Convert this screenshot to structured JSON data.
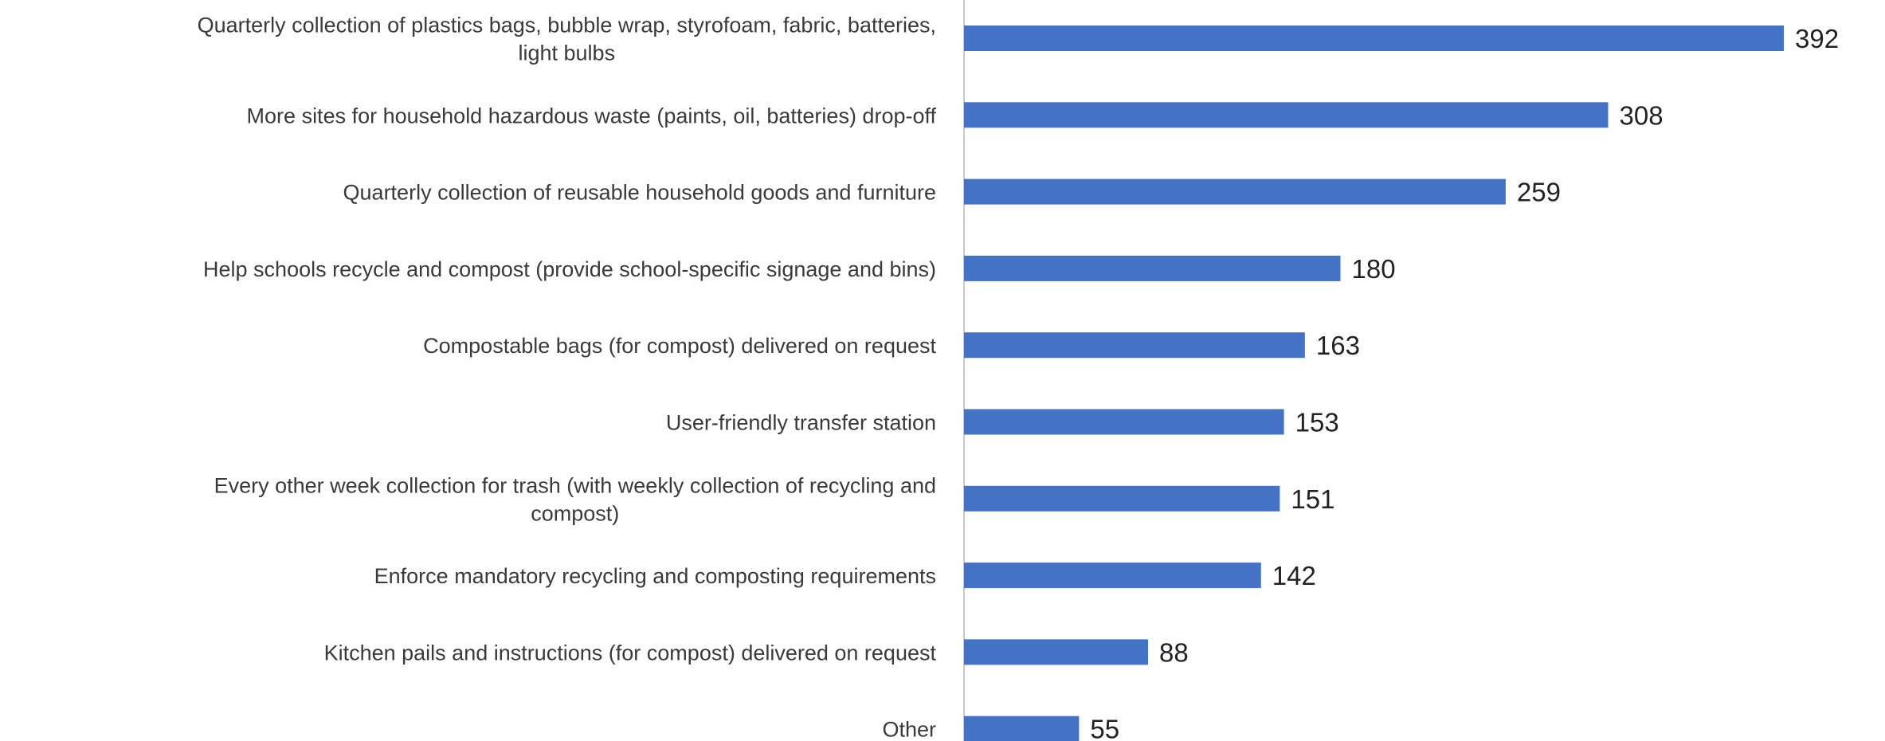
{
  "chart_data": {
    "type": "bar",
    "orientation": "horizontal",
    "title": "",
    "xlabel": "",
    "ylabel": "",
    "categories": [
      [
        "Quarterly collection of plastics bags, bubble wrap, styrofoam, fabric, batteries,",
        "light bulbs"
      ],
      [
        "More sites for household hazardous waste (paints, oil, batteries) drop-off"
      ],
      [
        "Quarterly collection of reusable household goods and furniture"
      ],
      [
        "Help schools recycle and compost (provide school-specific signage and bins)"
      ],
      [
        "Compostable bags (for compost) delivered on request"
      ],
      [
        "User-friendly transfer station"
      ],
      [
        "Every other week collection for trash (with weekly collection of recycling and",
        "compost)"
      ],
      [
        "Enforce mandatory recycling and composting requirements"
      ],
      [
        "Kitchen pails and instructions (for compost) delivered on request"
      ],
      [
        "Other"
      ]
    ],
    "values": [
      392,
      308,
      259,
      180,
      163,
      153,
      151,
      142,
      88,
      55
    ],
    "xlim": [
      0,
      400
    ],
    "grid": false,
    "legend": "none",
    "bar_color": "#4472C4",
    "axis_color": "#c8c8c8"
  }
}
